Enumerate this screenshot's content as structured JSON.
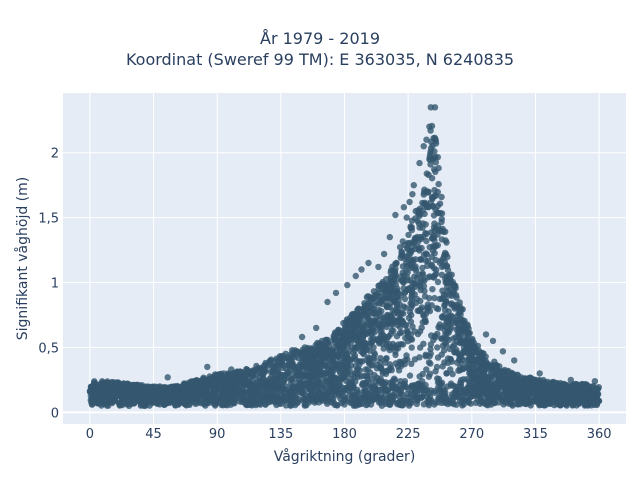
{
  "chart_data": {
    "type": "scatter",
    "title": [
      "År 1979 - 2019",
      "Koordinat (Sweref 99 TM): E 363035, N 6240835"
    ],
    "xlabel": "Vågriktning (grader)",
    "ylabel": "Signifikant våghöjd (m)",
    "xlim": [
      -19,
      379
    ],
    "ylim": [
      -0.09,
      2.46
    ],
    "xticks": [
      0,
      45,
      90,
      135,
      180,
      225,
      270,
      315,
      360
    ],
    "xtick_labels": [
      "0",
      "45",
      "90",
      "135",
      "180",
      "225",
      "270",
      "315",
      "360"
    ],
    "yticks": [
      0,
      0.5,
      1,
      1.5,
      2
    ],
    "ytick_labels": [
      "0",
      "0,5",
      "1",
      "1,5",
      "2"
    ],
    "grid": true,
    "legend": "none",
    "marker_color": "#34586f",
    "plot_background": "#e5ecf6",
    "envelope": {
      "description_upper_bound_by_direction": {
        "x": [
          0,
          10,
          30,
          45,
          60,
          75,
          90,
          100,
          110,
          120,
          130,
          140,
          150,
          160,
          170,
          180,
          190,
          200,
          210,
          220,
          225,
          230,
          235,
          240,
          243,
          245,
          248,
          250,
          255,
          260,
          265,
          270,
          275,
          280,
          290,
          300,
          310,
          320,
          330,
          340,
          350,
          360
        ],
        "y": [
          0.25,
          0.24,
          0.22,
          0.2,
          0.2,
          0.25,
          0.3,
          0.3,
          0.34,
          0.37,
          0.42,
          0.47,
          0.5,
          0.53,
          0.6,
          0.7,
          0.8,
          0.95,
          1.05,
          1.3,
          1.4,
          1.55,
          1.7,
          2.1,
          2.35,
          2.2,
          1.8,
          1.5,
          1.15,
          0.9,
          0.75,
          0.6,
          0.5,
          0.45,
          0.35,
          0.3,
          0.27,
          0.25,
          0.23,
          0.22,
          0.22,
          0.2
        ],
        "lower_y": 0.05
      },
      "outliers": [
        {
          "x": 241,
          "y": 2.35
        },
        {
          "x": 244,
          "y": 2.35
        },
        {
          "x": 240,
          "y": 2.2
        },
        {
          "x": 238,
          "y": 2.1
        },
        {
          "x": 236,
          "y": 2.05
        },
        {
          "x": 233,
          "y": 1.92
        },
        {
          "x": 229,
          "y": 1.75
        },
        {
          "x": 228,
          "y": 1.68
        },
        {
          "x": 226,
          "y": 1.62
        },
        {
          "x": 222,
          "y": 1.58
        },
        {
          "x": 224,
          "y": 1.5
        },
        {
          "x": 216,
          "y": 1.52
        },
        {
          "x": 212,
          "y": 1.35
        },
        {
          "x": 208,
          "y": 1.22
        },
        {
          "x": 204,
          "y": 1.12
        },
        {
          "x": 197,
          "y": 1.15
        },
        {
          "x": 192,
          "y": 1.1
        },
        {
          "x": 188,
          "y": 1.05
        },
        {
          "x": 182,
          "y": 0.98
        },
        {
          "x": 174,
          "y": 0.92
        },
        {
          "x": 168,
          "y": 0.85
        },
        {
          "x": 160,
          "y": 0.65
        },
        {
          "x": 150,
          "y": 0.58
        },
        {
          "x": 100,
          "y": 0.33
        },
        {
          "x": 83,
          "y": 0.35
        },
        {
          "x": 55,
          "y": 0.27
        },
        {
          "x": 20,
          "y": 0.23
        },
        {
          "x": 280,
          "y": 0.6
        },
        {
          "x": 285,
          "y": 0.55
        },
        {
          "x": 292,
          "y": 0.47
        },
        {
          "x": 300,
          "y": 0.4
        },
        {
          "x": 318,
          "y": 0.3
        },
        {
          "x": 340,
          "y": 0.25
        },
        {
          "x": 357,
          "y": 0.24
        }
      ]
    }
  }
}
